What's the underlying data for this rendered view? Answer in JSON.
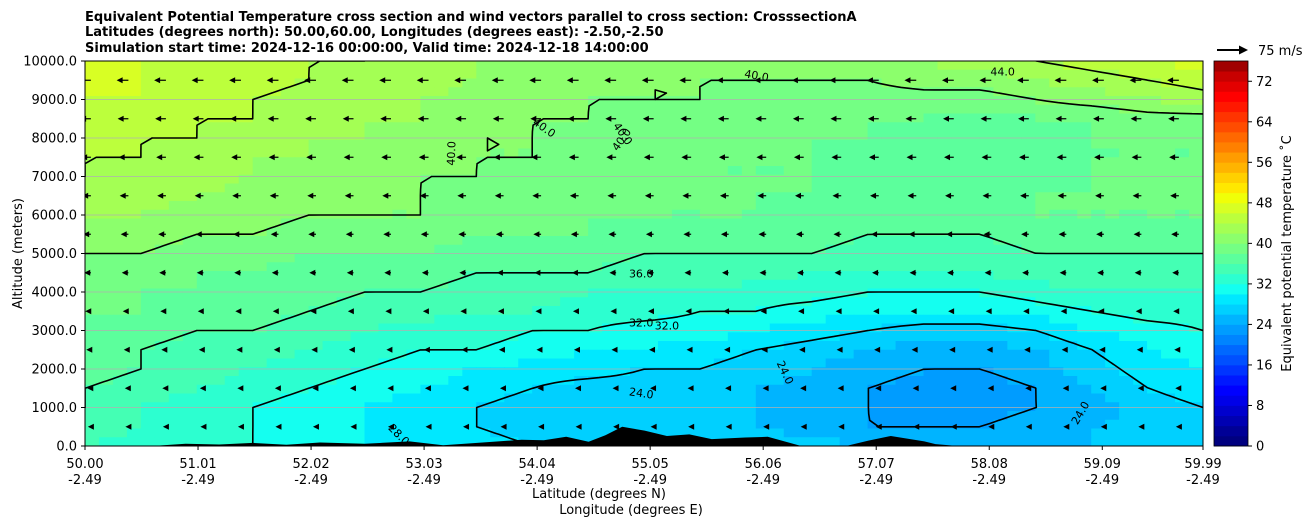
{
  "chart_data": {
    "type": "heatmap",
    "title_lines": [
      "Equivalent Potential Temperature cross section and wind vectors parallel to cross section: CrosssectionA",
      "Latitudes (degrees north): 50.00,60.00, Longitudes (degrees east): -2.50,-2.50",
      "Simulation start time: 2024-12-16 00:00:00, Valid time: 2024-12-18 14:00:00"
    ],
    "ylabel": "Altitude (meters)",
    "xlabel_lines": [
      "Latitude (degrees N)",
      "Longitude (degrees E)"
    ],
    "colorbar_label": "Equivalent potential temperature ˚C",
    "x_range": [
      50.0,
      59.99
    ],
    "ylim": [
      0,
      10000
    ],
    "x_ticks": [
      {
        "value": 50.0,
        "lat": "50.00",
        "lon": "-2.49"
      },
      {
        "value": 51.01,
        "lat": "51.01",
        "lon": "-2.49"
      },
      {
        "value": 52.02,
        "lat": "52.02",
        "lon": "-2.49"
      },
      {
        "value": 53.03,
        "lat": "53.03",
        "lon": "-2.49"
      },
      {
        "value": 54.04,
        "lat": "54.04",
        "lon": "-2.49"
      },
      {
        "value": 55.05,
        "lat": "55.05",
        "lon": "-2.49"
      },
      {
        "value": 56.06,
        "lat": "56.06",
        "lon": "-2.49"
      },
      {
        "value": 57.07,
        "lat": "57.07",
        "lon": "-2.49"
      },
      {
        "value": 58.08,
        "lat": "58.08",
        "lon": "-2.49"
      },
      {
        "value": 59.09,
        "lat": "59.09",
        "lon": "-2.49"
      },
      {
        "value": 59.99,
        "lat": "59.99",
        "lon": "-2.49"
      }
    ],
    "y_ticks": [
      {
        "value": 0,
        "label": "0.0"
      },
      {
        "value": 1000,
        "label": "1000.0"
      },
      {
        "value": 2000,
        "label": "2000.0"
      },
      {
        "value": 3000,
        "label": "3000.0"
      },
      {
        "value": 4000,
        "label": "4000.0"
      },
      {
        "value": 5000,
        "label": "5000.0"
      },
      {
        "value": 6000,
        "label": "6000.0"
      },
      {
        "value": 7000,
        "label": "7000.0"
      },
      {
        "value": 8000,
        "label": "8000.0"
      },
      {
        "value": 9000,
        "label": "9000.0"
      },
      {
        "value": 10000,
        "label": "10000.0"
      }
    ],
    "grid": "horizontal",
    "colorbar": {
      "min": 0,
      "max": 76,
      "step": 2,
      "ticks": [
        0,
        8,
        16,
        24,
        32,
        40,
        48,
        56,
        64,
        72
      ],
      "colors": [
        "#000080",
        "#000096",
        "#0000b2",
        "#0000cd",
        "#0000e8",
        "#0000ff",
        "#0018ff",
        "#0034ff",
        "#0050ff",
        "#0068ff",
        "#0084ff",
        "#009cff",
        "#00b4ff",
        "#00d0ff",
        "#00e8ff",
        "#14fff0",
        "#2cffd0",
        "#44ffb4",
        "#5cff9c",
        "#74ff84",
        "#8cff6c",
        "#a4ff54",
        "#bcff3c",
        "#d8ff24",
        "#f0ff08",
        "#ffe800",
        "#ffd000",
        "#ffb400",
        "#ff9c00",
        "#ff8000",
        "#ff6800",
        "#ff4c00",
        "#ff3400",
        "#ff1800",
        "#ff0000",
        "#e40000",
        "#c80000",
        "#a00000"
      ]
    },
    "temperature_field": {
      "x": [
        50.0,
        50.5,
        51.0,
        51.5,
        52.0,
        52.5,
        53.0,
        53.5,
        54.0,
        54.5,
        55.0,
        55.5,
        56.0,
        56.5,
        57.0,
        57.5,
        58.0,
        58.5,
        59.0,
        59.5,
        59.99
      ],
      "altitudes": [
        0,
        500,
        1000,
        1500,
        2000,
        2500,
        3000,
        3500,
        4000,
        4500,
        5000,
        5500,
        6000,
        6500,
        7000,
        7500,
        8000,
        8500,
        9000,
        9500,
        10000
      ],
      "values": [
        [
          34,
          33,
          32,
          32,
          31,
          30,
          30,
          29,
          28,
          28,
          28,
          27,
          27,
          27,
          26,
          26,
          26,
          26,
          26,
          27,
          27
        ],
        [
          35,
          34,
          33,
          32,
          31,
          30,
          29,
          28,
          27,
          27,
          27,
          26,
          26,
          25,
          24,
          24,
          24,
          25,
          26,
          27,
          27
        ],
        [
          36,
          34,
          33,
          32,
          31,
          30,
          29,
          28,
          27,
          27,
          26,
          26,
          26,
          25,
          24,
          23,
          23,
          24,
          25,
          27,
          28
        ],
        [
          36,
          35,
          34,
          33,
          32,
          31,
          30,
          29,
          28,
          27,
          27,
          27,
          26,
          25,
          24,
          23,
          23,
          24,
          26,
          28,
          29
        ],
        [
          37,
          36,
          35,
          34,
          33,
          32,
          31,
          30,
          29,
          29,
          28,
          28,
          27,
          26,
          25,
          24,
          24,
          25,
          27,
          29,
          30
        ],
        [
          37,
          36,
          35,
          35,
          34,
          33,
          32,
          32,
          31,
          30,
          30,
          29,
          28,
          27,
          26,
          25,
          25,
          26,
          28,
          30,
          31
        ],
        [
          38,
          37,
          36,
          36,
          35,
          34,
          33,
          33,
          32,
          32,
          31,
          31,
          30,
          29,
          28,
          27,
          27,
          28,
          30,
          31,
          32
        ],
        [
          38,
          38,
          37,
          37,
          36,
          35,
          35,
          34,
          34,
          33,
          33,
          32,
          32,
          31,
          30,
          30,
          30,
          31,
          32,
          33,
          33
        ],
        [
          39,
          38,
          38,
          37,
          37,
          36,
          36,
          35,
          35,
          34,
          34,
          34,
          33,
          33,
          32,
          32,
          32,
          33,
          34,
          34,
          34
        ],
        [
          39,
          39,
          38,
          38,
          37,
          37,
          37,
          36,
          36,
          36,
          35,
          35,
          35,
          34,
          34,
          34,
          34,
          35,
          35,
          35,
          35
        ],
        [
          40,
          40,
          39,
          39,
          38,
          38,
          38,
          37,
          37,
          37,
          36,
          36,
          36,
          36,
          35,
          35,
          35,
          36,
          36,
          36,
          36
        ],
        [
          41,
          41,
          40,
          40,
          39,
          39,
          39,
          38,
          38,
          38,
          37,
          37,
          37,
          37,
          36,
          36,
          36,
          37,
          37,
          37,
          37
        ],
        [
          42,
          42,
          41,
          41,
          40,
          40,
          40,
          39,
          39,
          38,
          38,
          38,
          38,
          37,
          37,
          37,
          37,
          38,
          38,
          38,
          38
        ],
        [
          43,
          43,
          42,
          41,
          41,
          40,
          40,
          39,
          39,
          39,
          38,
          38,
          38,
          38,
          37,
          37,
          37,
          38,
          38,
          38,
          38
        ],
        [
          44,
          43,
          43,
          42,
          41,
          41,
          40,
          40,
          39,
          39,
          39,
          38,
          38,
          38,
          37,
          37,
          37,
          37,
          38,
          38,
          38
        ],
        [
          44,
          44,
          43,
          42,
          42,
          41,
          41,
          40,
          40,
          39,
          39,
          38,
          38,
          38,
          37,
          37,
          37,
          37,
          38,
          38,
          38
        ],
        [
          45,
          44,
          44,
          43,
          42,
          42,
          41,
          40,
          40,
          39,
          39,
          39,
          38,
          38,
          38,
          37,
          37,
          37,
          38,
          38,
          38
        ],
        [
          45,
          45,
          44,
          44,
          43,
          42,
          42,
          41,
          40,
          40,
          39,
          39,
          39,
          38,
          38,
          38,
          37,
          38,
          38,
          39,
          39
        ],
        [
          46,
          46,
          45,
          44,
          43,
          43,
          42,
          41,
          41,
          40,
          40,
          40,
          39,
          39,
          39,
          39,
          39,
          40,
          41,
          42,
          43
        ],
        [
          46,
          46,
          45,
          45,
          44,
          43,
          43,
          42,
          41,
          41,
          40,
          40,
          40,
          40,
          40,
          41,
          41,
          42,
          43,
          44,
          45
        ],
        [
          47,
          46,
          46,
          45,
          44,
          44,
          43,
          42,
          42,
          41,
          41,
          41,
          41,
          41,
          42,
          42,
          43,
          44,
          45,
          46,
          47
        ]
      ]
    },
    "contour_labels": [
      {
        "text": "40.0",
        "x": 54.1,
        "y": 8250,
        "rotate": 35
      },
      {
        "text": "40.0",
        "x": 53.28,
        "y": 7600,
        "rotate": -88
      },
      {
        "text": "40.0",
        "x": 54.8,
        "y": 8100,
        "rotate": 55
      },
      {
        "text": "40.0",
        "x": 54.8,
        "y": 7950,
        "rotate": -55
      },
      {
        "text": "40.0",
        "x": 56.0,
        "y": 9600,
        "rotate": 10
      },
      {
        "text": "44.0",
        "x": 58.2,
        "y": 9700,
        "rotate": 0
      },
      {
        "text": "36.0",
        "x": 54.97,
        "y": 4450,
        "rotate": 0
      },
      {
        "text": "32.0",
        "x": 54.97,
        "y": 3180,
        "rotate": 0
      },
      {
        "text": "32.0",
        "x": 55.2,
        "y": 3100,
        "rotate": 0
      },
      {
        "text": "24.0",
        "x": 54.97,
        "y": 1350,
        "rotate": 8
      },
      {
        "text": "24.0",
        "x": 56.25,
        "y": 1900,
        "rotate": 65
      },
      {
        "text": "24.0",
        "x": 58.9,
        "y": 850,
        "rotate": -60
      },
      {
        "text": "28.0",
        "x": 52.8,
        "y": 280,
        "rotate": 45
      }
    ],
    "wind_legend": {
      "magnitude": 75,
      "unit": "m/s",
      "label": "75 m/s"
    },
    "wind": {
      "direction": "southward along cross section (arrows point toward decreasing latitude)",
      "speed_by_altitude": [
        {
          "altitude": 500,
          "speed": 4
        },
        {
          "altitude": 1500,
          "speed": 7
        },
        {
          "altitude": 2500,
          "speed": 9
        },
        {
          "altitude": 3500,
          "speed": 11
        },
        {
          "altitude": 4500,
          "speed": 13
        },
        {
          "altitude": 5500,
          "speed": 15
        },
        {
          "altitude": 6500,
          "speed": 17
        },
        {
          "altitude": 7500,
          "speed": 19
        },
        {
          "altitude": 8500,
          "speed": 21
        },
        {
          "altitude": 9500,
          "speed": 23
        }
      ]
    },
    "terrain": {
      "x": [
        50.0,
        50.6,
        50.9,
        51.2,
        51.5,
        51.8,
        52.1,
        52.5,
        52.9,
        53.2,
        53.6,
        53.9,
        54.1,
        54.3,
        54.5,
        54.65,
        54.8,
        55.0,
        55.2,
        55.4,
        55.6,
        55.9,
        56.1,
        56.4,
        56.8,
        57.0,
        57.2,
        57.5,
        57.6,
        57.8,
        58.0,
        59.99
      ],
      "height": [
        0,
        0,
        60,
        40,
        80,
        30,
        90,
        60,
        120,
        20,
        100,
        160,
        150,
        240,
        110,
        280,
        500,
        400,
        260,
        300,
        180,
        220,
        240,
        0,
        0,
        140,
        260,
        120,
        50,
        0,
        0,
        0
      ]
    }
  }
}
